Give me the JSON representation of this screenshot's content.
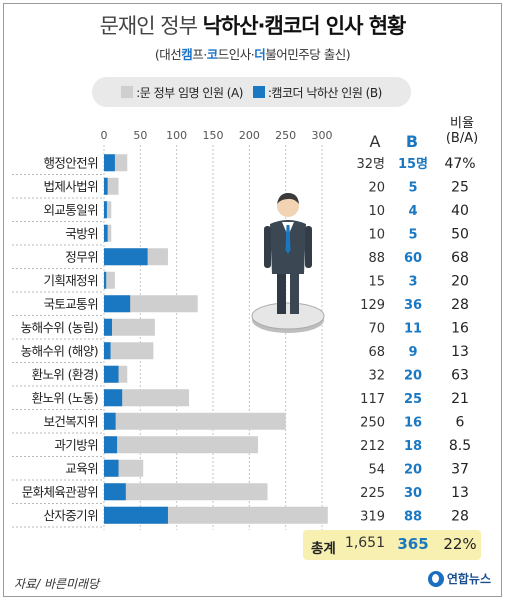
{
  "title": {
    "light": "문재인 정부",
    "bold": "낙하산·캠코더 인사 현황"
  },
  "subtitle": {
    "open": "(대선",
    "camp": "캠",
    "camp_rest": "프·",
    "co": "코",
    "co_rest": "드인사·",
    "deo": "더",
    "deo_rest": "불어민주당 출신)"
  },
  "legend": {
    "a_label": ":문 정부 임명 인원 (A)",
    "b_label": ":캠코더 낙하산 인원 (B)"
  },
  "columns": {
    "a": "A",
    "b": "B",
    "ratio_line1": "비율",
    "ratio_line2": "(B/A)"
  },
  "chart_data": {
    "type": "bar",
    "orientation": "horizontal",
    "stacking": "overlaid",
    "xlim": [
      0,
      300
    ],
    "ticks": [
      0,
      50,
      100,
      150,
      200,
      250,
      300
    ],
    "tick_labels": [
      "0",
      "50",
      "100",
      "150",
      "200",
      "250",
      "300"
    ],
    "colors": {
      "a": "#cfcfcf",
      "b": "#1a78c2"
    },
    "rows": [
      {
        "category": "행정안전위",
        "a": 32,
        "a_label": "32명",
        "b": 15,
        "b_label": "15명",
        "ratio": "47%"
      },
      {
        "category": "법제사법위",
        "a": 20,
        "a_label": "20",
        "b": 5,
        "b_label": "5",
        "ratio": "25"
      },
      {
        "category": "외교통일위",
        "a": 10,
        "a_label": "10",
        "b": 4,
        "b_label": "4",
        "ratio": "40"
      },
      {
        "category": "국방위",
        "a": 10,
        "a_label": "10",
        "b": 5,
        "b_label": "5",
        "ratio": "50"
      },
      {
        "category": "정무위",
        "a": 88,
        "a_label": "88",
        "b": 60,
        "b_label": "60",
        "ratio": "68"
      },
      {
        "category": "기획재정위",
        "a": 15,
        "a_label": "15",
        "b": 3,
        "b_label": "3",
        "ratio": "20"
      },
      {
        "category": "국토교통위",
        "a": 129,
        "a_label": "129",
        "b": 36,
        "b_label": "36",
        "ratio": "28"
      },
      {
        "category": "농해수위 (농림)",
        "a": 70,
        "a_label": "70",
        "b": 11,
        "b_label": "11",
        "ratio": "16"
      },
      {
        "category": "농해수위 (해양)",
        "a": 68,
        "a_label": "68",
        "b": 9,
        "b_label": "9",
        "ratio": "13"
      },
      {
        "category": "환노위 (환경)",
        "a": 32,
        "a_label": "32",
        "b": 20,
        "b_label": "20",
        "ratio": "63"
      },
      {
        "category": "환노위 (노동)",
        "a": 117,
        "a_label": "117",
        "b": 25,
        "b_label": "25",
        "ratio": "21"
      },
      {
        "category": "보건복지위",
        "a": 250,
        "a_label": "250",
        "b": 16,
        "b_label": "16",
        "ratio": "6"
      },
      {
        "category": "과기방위",
        "a": 212,
        "a_label": "212",
        "b": 18,
        "b_label": "18",
        "ratio": "8.5"
      },
      {
        "category": "교육위",
        "a": 54,
        "a_label": "54",
        "b": 20,
        "b_label": "20",
        "ratio": "37"
      },
      {
        "category": "문화체육관광위",
        "a": 225,
        "a_label": "225",
        "b": 30,
        "b_label": "30",
        "ratio": "13"
      },
      {
        "category": "산자중기위",
        "a": 319,
        "a_label": "319",
        "b": 88,
        "b_label": "88",
        "ratio": "28"
      }
    ]
  },
  "total": {
    "label": "총계",
    "a": "1,651",
    "b": "365",
    "ratio": "22%"
  },
  "source": "자료/ 바른미래당",
  "logo": "연합뉴스"
}
